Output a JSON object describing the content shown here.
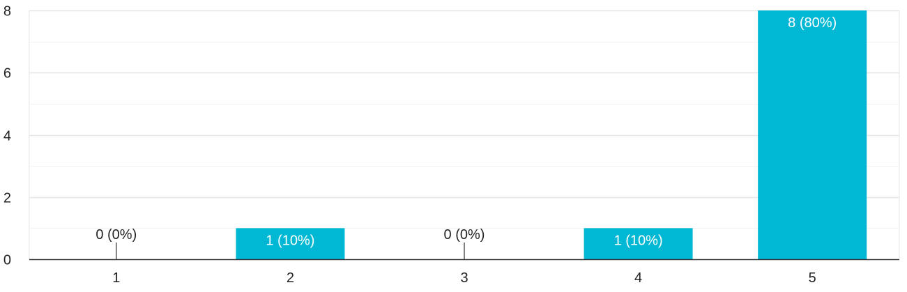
{
  "chart_data": {
    "type": "bar",
    "categories": [
      "1",
      "2",
      "3",
      "4",
      "5"
    ],
    "values": [
      0,
      1,
      0,
      1,
      8
    ],
    "data_labels": [
      "0 (0%)",
      "1 (10%)",
      "0 (0%)",
      "1 (10%)",
      "8 (80%)"
    ],
    "y_ticks": [
      "0",
      "2",
      "4",
      "6",
      "8"
    ],
    "ylim": [
      0,
      8
    ],
    "title": "",
    "xlabel": "",
    "ylabel": "",
    "grid": true,
    "legend": "none",
    "colors": {
      "bar": "#00b8d4",
      "grid_major": "#e5e5e5",
      "grid_minor": "#f2f2f2",
      "axis": "#333333",
      "label_inside": "#ffffff",
      "label_outside": "#222222"
    }
  }
}
